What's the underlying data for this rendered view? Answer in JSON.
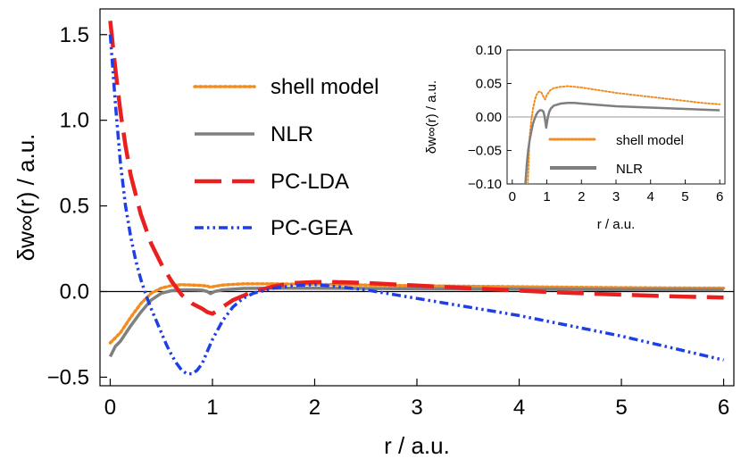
{
  "chart_data": [
    {
      "type": "line",
      "title": "",
      "xlabel": "r / a.u.",
      "ylabel": "δw∞(r) / a.u.",
      "xlim": [
        -0.1,
        6.1
      ],
      "ylim": [
        -0.55,
        1.65
      ],
      "x_ticks": [
        0,
        1,
        2,
        3,
        4,
        5,
        6
      ],
      "x_tick_labels": [
        "0",
        "1",
        "2",
        "3",
        "4",
        "5",
        "6"
      ],
      "y_ticks": [
        -0.5,
        0.0,
        0.5,
        1.0,
        1.5
      ],
      "y_tick_labels": [
        "−0.5",
        "0.0",
        "0.5",
        "1.0",
        "1.5"
      ],
      "legend_position": "upper-middle",
      "series": [
        {
          "name": "shell model",
          "color": "#F28C1E",
          "dash": "dotted",
          "x": [
            0,
            0.05,
            0.1,
            0.2,
            0.3,
            0.4,
            0.5,
            0.6,
            0.7,
            0.8,
            0.9,
            0.95,
            0.98,
            1.02,
            1.1,
            1.3,
            1.6,
            2.0,
            2.5,
            3.0,
            3.5,
            4.0,
            4.5,
            5.0,
            5.5,
            6.0
          ],
          "y": [
            -0.3,
            -0.27,
            -0.24,
            -0.15,
            -0.07,
            -0.01,
            0.02,
            0.035,
            0.04,
            0.038,
            0.035,
            0.032,
            0.025,
            0.03,
            0.038,
            0.045,
            0.045,
            0.042,
            0.038,
            0.034,
            0.031,
            0.028,
            0.025,
            0.023,
            0.021,
            0.02
          ]
        },
        {
          "name": "NLR",
          "color": "#7F7F7F",
          "dash": "solid",
          "x": [
            0,
            0.05,
            0.1,
            0.2,
            0.3,
            0.4,
            0.5,
            0.6,
            0.7,
            0.8,
            0.9,
            0.95,
            0.98,
            1.02,
            1.1,
            1.3,
            1.6,
            2.0,
            2.5,
            3.0,
            3.5,
            4.0,
            4.5,
            5.0,
            5.5,
            6.0
          ],
          "y": [
            -0.38,
            -0.32,
            -0.29,
            -0.2,
            -0.12,
            -0.05,
            -0.01,
            0.005,
            0.01,
            0.01,
            0.008,
            0.0,
            -0.012,
            0.0,
            0.01,
            0.018,
            0.02,
            0.02,
            0.018,
            0.016,
            0.015,
            0.014,
            0.013,
            0.012,
            0.011,
            0.01
          ]
        },
        {
          "name": "PC-LDA",
          "color": "#E8201F",
          "dash": "dashed",
          "x": [
            0,
            0.05,
            0.1,
            0.15,
            0.2,
            0.3,
            0.4,
            0.5,
            0.6,
            0.7,
            0.8,
            0.9,
            0.95,
            1.0,
            1.05,
            1.1,
            1.2,
            1.4,
            1.6,
            1.8,
            2.0,
            2.2,
            2.5,
            3.0,
            3.5,
            4.0,
            4.5,
            5.0,
            5.5,
            6.0
          ],
          "y": [
            1.58,
            1.3,
            1.05,
            0.85,
            0.68,
            0.45,
            0.28,
            0.16,
            0.06,
            -0.02,
            -0.07,
            -0.1,
            -0.12,
            -0.13,
            -0.11,
            -0.09,
            -0.05,
            0.0,
            0.03,
            0.05,
            0.055,
            0.055,
            0.05,
            0.035,
            0.02,
            0.005,
            -0.008,
            -0.018,
            -0.028,
            -0.035
          ]
        },
        {
          "name": "PC-GEA",
          "color": "#1E3FE6",
          "dash": "dashdotdot",
          "x": [
            0,
            0.05,
            0.1,
            0.15,
            0.2,
            0.25,
            0.3,
            0.35,
            0.4,
            0.45,
            0.5,
            0.55,
            0.6,
            0.65,
            0.7,
            0.75,
            0.8,
            0.85,
            0.9,
            0.95,
            1.0,
            1.1,
            1.2,
            1.3,
            1.4,
            1.6,
            1.8,
            2.0,
            2.2,
            2.5,
            3.0,
            3.5,
            4.0,
            4.5,
            5.0,
            5.5,
            6.0
          ],
          "y": [
            1.5,
            1.1,
            0.75,
            0.5,
            0.32,
            0.18,
            0.07,
            -0.02,
            -0.1,
            -0.17,
            -0.24,
            -0.31,
            -0.37,
            -0.42,
            -0.46,
            -0.48,
            -0.48,
            -0.46,
            -0.42,
            -0.35,
            -0.28,
            -0.17,
            -0.09,
            -0.04,
            -0.01,
            0.02,
            0.035,
            0.04,
            0.03,
            0.01,
            -0.04,
            -0.09,
            -0.14,
            -0.2,
            -0.26,
            -0.33,
            -0.4
          ]
        }
      ]
    },
    {
      "type": "line",
      "title": "",
      "xlabel": "r / a.u.",
      "ylabel": "δw∞(r) / a.u.",
      "xlim": [
        -0.15,
        6.15
      ],
      "ylim": [
        -0.1,
        0.1
      ],
      "x_ticks": [
        0,
        1,
        2,
        3,
        4,
        5,
        6
      ],
      "x_tick_labels": [
        "0",
        "1",
        "2",
        "3",
        "4",
        "5",
        "6"
      ],
      "y_ticks": [
        -0.1,
        -0.05,
        0.0,
        0.05,
        0.1
      ],
      "y_tick_labels": [
        "−0.10",
        "−0.05",
        "0.00",
        "0.05",
        "0.10"
      ],
      "legend_position": "lower-middle",
      "series": [
        {
          "name": "shell model",
          "color": "#F28C1E",
          "dash": "dotted",
          "x": [
            0.45,
            0.5,
            0.55,
            0.6,
            0.65,
            0.7,
            0.75,
            0.8,
            0.85,
            0.9,
            0.95,
            1.0,
            1.1,
            1.2,
            1.4,
            1.6,
            2.0,
            2.5,
            3.0,
            3.5,
            4.0,
            4.5,
            5.0,
            5.5,
            6.0
          ],
          "y": [
            -0.1,
            -0.03,
            -0.005,
            0.012,
            0.025,
            0.033,
            0.037,
            0.038,
            0.036,
            0.03,
            0.026,
            0.033,
            0.04,
            0.043,
            0.045,
            0.046,
            0.044,
            0.04,
            0.036,
            0.033,
            0.03,
            0.027,
            0.024,
            0.021,
            0.019
          ]
        },
        {
          "name": "NLR",
          "color": "#7F7F7F",
          "dash": "solid",
          "x": [
            0.38,
            0.42,
            0.46,
            0.5,
            0.55,
            0.6,
            0.65,
            0.7,
            0.75,
            0.8,
            0.85,
            0.9,
            0.93,
            0.96,
            0.98,
            1.0,
            1.03,
            1.07,
            1.12,
            1.2,
            1.4,
            1.6,
            1.8,
            2.0,
            2.5,
            3.0,
            3.5,
            4.0,
            4.5,
            5.0,
            5.5,
            6.0
          ],
          "y": [
            -0.1,
            -0.07,
            -0.05,
            -0.035,
            -0.022,
            -0.01,
            -0.002,
            0.004,
            0.008,
            0.01,
            0.01,
            0.008,
            0.002,
            -0.008,
            -0.016,
            -0.01,
            0.0,
            0.008,
            0.013,
            0.017,
            0.02,
            0.021,
            0.021,
            0.02,
            0.018,
            0.016,
            0.015,
            0.014,
            0.013,
            0.012,
            0.011,
            0.01
          ]
        }
      ]
    }
  ]
}
